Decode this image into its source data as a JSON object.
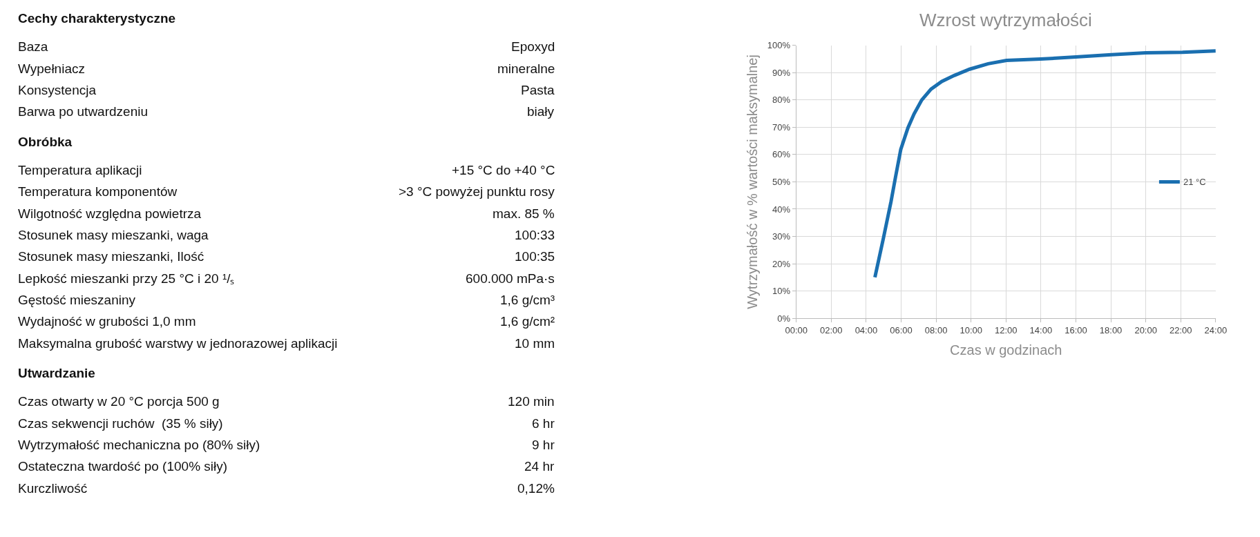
{
  "chart_data": [
    {
      "type": "other",
      "categories": [
        "Cechy charakterystyczne",
        "Baza",
        "Wypełniacz",
        "Konsystencja",
        "Barwa po utwardzeniu",
        "Obróbka",
        "Temperatura aplikacji",
        "Temperatura komponentów",
        "Wilgotność względna powietrza",
        "Stosunek masy mieszanki, waga",
        "Stosunek masy mieszanki, Ilość",
        "Lepkość mieszanki przy 25 °C i 20 ¹/ₛ",
        "Gęstość mieszaniny",
        "Wydajność w grubości 1,0 mm",
        "Maksymalna grubość warstwy w jednorazowej aplikacji",
        "Utwardzanie",
        "Czas otwarty w 20 °C porcja 500 g",
        "Czas sekwencji ruchów  (35 % siły)",
        "Wytrzymałość mechaniczna po (80% siły)",
        "Ostateczna twardość po (100% siły)",
        "Kurczliwość"
      ],
      "value_labels": [
        null,
        "Epoxyd",
        "mineralne",
        "Pasta",
        "biały",
        null,
        "+15 °C do +40 °C",
        ">3 °C powyżej punktu rosy",
        "max. 85 %",
        "100:33",
        "100:35",
        "600.000 mPa·s",
        "1,6 g/cm³",
        "1,6 g/cm²",
        "10 mm",
        null,
        "120 min",
        "6 hr",
        "9 hr",
        "24 hr",
        "0,12%"
      ]
    },
    {
      "type": "line",
      "title": "Wzrost wytrzymałości",
      "xlabel": "Czas w godzinach",
      "ylabel": "Wytrzymałość w % wartości maksymalnej",
      "x": [
        4.5,
        4.98,
        5.42,
        5.68,
        5.98,
        6.39,
        6.74,
        7.18,
        7.71,
        8.33,
        9.04,
        9.92,
        10.98,
        12.03,
        13.98,
        16,
        18.03,
        20,
        22.1,
        24
      ],
      "series": [
        {
          "name": "21 °C",
          "color": "#1a6fb0",
          "values": [
            15,
            29.2,
            42.7,
            51.8,
            61.9,
            69.8,
            74.9,
            80,
            84,
            86.8,
            89,
            91.3,
            93.3,
            94.5,
            95,
            95.8,
            96.6,
            97.3,
            97.5,
            98
          ]
        }
      ],
      "xlim": [
        0,
        24
      ],
      "xticks": [
        {
          "value": 0,
          "label": "00:00"
        },
        {
          "value": 2,
          "label": "02:00"
        },
        {
          "value": 4,
          "label": "04:00"
        },
        {
          "value": 6,
          "label": "06:00"
        },
        {
          "value": 8,
          "label": "08:00"
        },
        {
          "value": 10,
          "label": "10:00"
        },
        {
          "value": 12,
          "label": "12:00"
        },
        {
          "value": 14,
          "label": "14:00"
        },
        {
          "value": 16,
          "label": "16:00"
        },
        {
          "value": 18,
          "label": "18:00"
        },
        {
          "value": 20,
          "label": "20:00"
        },
        {
          "value": 22,
          "label": "22:00"
        },
        {
          "value": 24,
          "label": "24:00"
        }
      ],
      "ylim": [
        0,
        100
      ],
      "yticks": [
        {
          "value": 0,
          "label": "0%"
        },
        {
          "value": 10,
          "label": "10%"
        },
        {
          "value": 20,
          "label": "20%"
        },
        {
          "value": 30,
          "label": "30%"
        },
        {
          "value": 40,
          "label": "40%"
        },
        {
          "value": 50,
          "label": "50%"
        },
        {
          "value": 60,
          "label": "60%"
        },
        {
          "value": 70,
          "label": "70%"
        },
        {
          "value": 80,
          "label": "80%"
        },
        {
          "value": 90,
          "label": "90%"
        },
        {
          "value": 100,
          "label": "100%"
        }
      ],
      "grid": true,
      "legend": "right",
      "marker": "none",
      "line_style": "solid"
    }
  ]
}
